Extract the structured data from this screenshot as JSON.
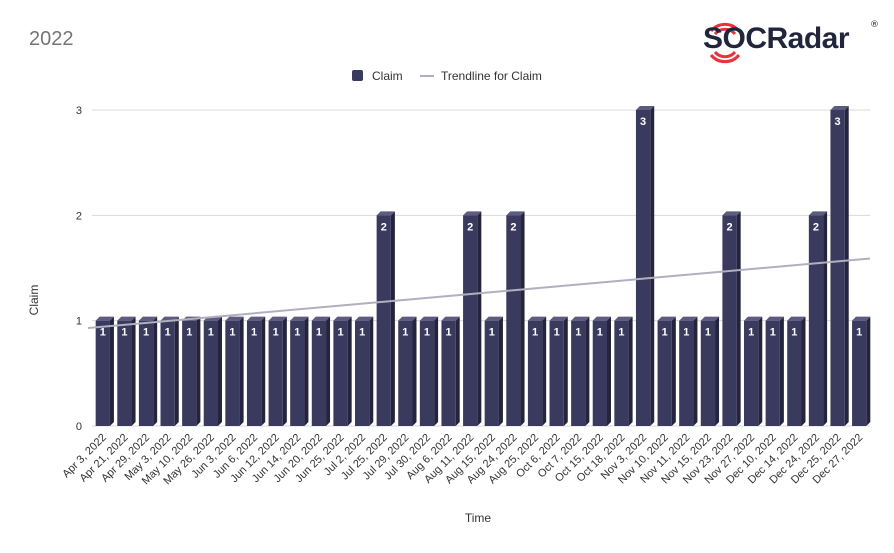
{
  "page_title": "2022",
  "brand": {
    "name": "SOCRadar",
    "registered_mark": "®",
    "text_color": "#22263d",
    "accent_color": "#e8323c"
  },
  "chart_data": {
    "type": "bar",
    "title": "",
    "xlabel": "Time",
    "ylabel": "Claim",
    "ylim": [
      0,
      3
    ],
    "yticks": [
      0,
      1,
      2,
      3
    ],
    "grid": true,
    "legend_position": "top-center",
    "categories": [
      "Apr 3, 2022",
      "Apr 21, 2022",
      "Apr 29, 2022",
      "May 3, 2022",
      "May 10, 2022",
      "May 26, 2022",
      "Jun 3, 2022",
      "Jun 6, 2022",
      "Jun 12, 2022",
      "Jun 14, 2022",
      "Jun 20, 2022",
      "Jun 25, 2022",
      "Jul 2, 2022",
      "Jul 25, 2022",
      "Jul 29, 2022",
      "Jul 30, 2022",
      "Aug 6, 2022",
      "Aug 11, 2022",
      "Aug 15, 2022",
      "Aug 24, 2022",
      "Aug 25, 2022",
      "Oct 6, 2022",
      "Oct 7, 2022",
      "Oct 15, 2022",
      "Oct 18, 2022",
      "Nov 3, 2022",
      "Nov 10, 2022",
      "Nov 11, 2022",
      "Nov 15, 2022",
      "Nov 23, 2022",
      "Nov 27, 2022",
      "Dec 10, 2022",
      "Dec 14, 2022",
      "Dec 24, 2022",
      "Dec 25, 2022",
      "Dec 27, 2022"
    ],
    "series": [
      {
        "name": "Claim",
        "color": "#3a3a5f",
        "values": [
          1,
          1,
          1,
          1,
          1,
          1,
          1,
          1,
          1,
          1,
          1,
          1,
          1,
          2,
          1,
          1,
          1,
          2,
          1,
          2,
          1,
          1,
          1,
          1,
          1,
          3,
          1,
          1,
          1,
          2,
          1,
          1,
          1,
          2,
          3,
          1
        ]
      }
    ],
    "trendline": {
      "name": "Trendline for Claim",
      "color": "#b0b0bf",
      "start_value": 0.93,
      "end_value": 1.59
    }
  }
}
